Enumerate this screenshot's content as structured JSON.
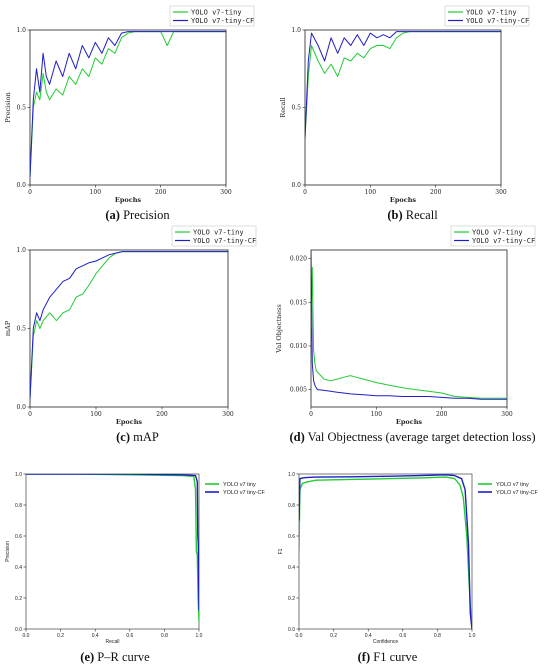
{
  "colors": {
    "tiny": "#22cc33",
    "cf": "#1e1ec8"
  },
  "chart_data": [
    {
      "id": "a",
      "type": "line",
      "caption_letter": "(a)",
      "caption_text": " Precision",
      "xlabel": "Epochs",
      "ylabel": "Precision",
      "xlim": [
        0,
        300
      ],
      "ylim": [
        0,
        1.0
      ],
      "xticks": [
        "0",
        "100",
        "200",
        "300"
      ],
      "xtick_values": [
        0,
        100,
        200,
        300
      ],
      "yticks": [
        "0.0",
        "0.5",
        "1.0"
      ],
      "ytick_values": [
        0,
        0.5,
        1.0
      ],
      "legend": "top-right",
      "series": [
        {
          "name": "YOLO v7-tiny",
          "color_key": "tiny",
          "x": [
            0,
            5,
            10,
            15,
            20,
            25,
            30,
            40,
            50,
            60,
            70,
            80,
            90,
            100,
            110,
            120,
            130,
            140,
            150,
            160,
            170,
            180,
            190,
            200,
            210,
            220,
            240,
            260,
            280,
            300
          ],
          "y": [
            0.05,
            0.5,
            0.6,
            0.55,
            0.72,
            0.6,
            0.55,
            0.62,
            0.58,
            0.7,
            0.65,
            0.75,
            0.7,
            0.82,
            0.78,
            0.88,
            0.85,
            0.95,
            0.98,
            0.99,
            0.99,
            0.99,
            0.99,
            0.99,
            0.9,
            0.99,
            0.99,
            0.99,
            0.99,
            0.99
          ]
        },
        {
          "name": "YOLO v7-tiny-CF",
          "color_key": "cf",
          "x": [
            0,
            5,
            10,
            15,
            20,
            25,
            30,
            40,
            50,
            60,
            70,
            80,
            90,
            100,
            110,
            120,
            130,
            140,
            150,
            160,
            170,
            180,
            190,
            200,
            220,
            240,
            260,
            280,
            300
          ],
          "y": [
            0.05,
            0.55,
            0.75,
            0.6,
            0.85,
            0.7,
            0.65,
            0.8,
            0.7,
            0.85,
            0.75,
            0.9,
            0.82,
            0.92,
            0.85,
            0.95,
            0.9,
            0.98,
            0.99,
            0.99,
            0.99,
            0.99,
            0.99,
            0.99,
            0.99,
            0.99,
            0.99,
            0.99,
            0.99
          ]
        }
      ]
    },
    {
      "id": "b",
      "type": "line",
      "caption_letter": "(b)",
      "caption_text": " Recall",
      "xlabel": "Epochs",
      "ylabel": "Recall",
      "xlim": [
        0,
        300
      ],
      "ylim": [
        0,
        1.0
      ],
      "xticks": [
        "0",
        "100",
        "200",
        "300"
      ],
      "xtick_values": [
        0,
        100,
        200,
        300
      ],
      "yticks": [
        "0.0",
        "0.5",
        "1.0"
      ],
      "ytick_values": [
        0,
        0.5,
        1.0
      ],
      "legend": "top-right",
      "series": [
        {
          "name": "YOLO v7-tiny",
          "color_key": "tiny",
          "x": [
            0,
            5,
            10,
            20,
            30,
            40,
            50,
            60,
            70,
            80,
            90,
            100,
            110,
            120,
            130,
            140,
            150,
            160,
            180,
            200,
            220,
            250,
            300
          ],
          "y": [
            0.3,
            0.7,
            0.9,
            0.8,
            0.72,
            0.78,
            0.7,
            0.82,
            0.8,
            0.85,
            0.82,
            0.88,
            0.9,
            0.9,
            0.88,
            0.95,
            0.98,
            0.99,
            0.99,
            0.99,
            0.99,
            0.99,
            0.99
          ]
        },
        {
          "name": "YOLO v7-tiny-CF",
          "color_key": "cf",
          "x": [
            0,
            5,
            10,
            20,
            30,
            40,
            50,
            60,
            70,
            80,
            90,
            100,
            110,
            120,
            130,
            140,
            150,
            160,
            180,
            200,
            220,
            250,
            300
          ],
          "y": [
            0.3,
            0.8,
            0.98,
            0.9,
            0.8,
            0.95,
            0.85,
            0.95,
            0.9,
            0.97,
            0.9,
            0.98,
            0.95,
            0.97,
            0.95,
            0.99,
            0.99,
            0.99,
            0.99,
            0.99,
            0.99,
            0.99,
            0.99
          ]
        }
      ]
    },
    {
      "id": "c",
      "type": "line",
      "caption_letter": "(c)",
      "caption_text": " mAP",
      "xlabel": "Epochs",
      "ylabel": "mAP",
      "xlim": [
        0,
        300
      ],
      "ylim": [
        0,
        1.0
      ],
      "xticks": [
        "0",
        "100",
        "200",
        "300"
      ],
      "xtick_values": [
        0,
        100,
        200,
        300
      ],
      "yticks": [
        "0.0",
        "0.5",
        "1.0"
      ],
      "ytick_values": [
        0,
        0.5,
        1.0
      ],
      "legend": "top-right",
      "series": [
        {
          "name": "YOLO v7-tiny",
          "color_key": "tiny",
          "x": [
            0,
            5,
            10,
            15,
            20,
            30,
            40,
            50,
            60,
            70,
            80,
            90,
            100,
            110,
            120,
            130,
            140,
            150,
            170,
            200,
            250,
            300
          ],
          "y": [
            0.05,
            0.45,
            0.55,
            0.5,
            0.55,
            0.6,
            0.55,
            0.6,
            0.62,
            0.7,
            0.72,
            0.78,
            0.85,
            0.9,
            0.95,
            0.98,
            0.99,
            0.99,
            0.99,
            0.99,
            0.99,
            0.99
          ]
        },
        {
          "name": "YOLO v7-tiny-CF",
          "color_key": "cf",
          "x": [
            0,
            5,
            10,
            15,
            20,
            30,
            40,
            50,
            60,
            70,
            80,
            90,
            100,
            110,
            120,
            130,
            140,
            150,
            170,
            200,
            250,
            300
          ],
          "y": [
            0.05,
            0.5,
            0.6,
            0.55,
            0.62,
            0.7,
            0.75,
            0.8,
            0.82,
            0.88,
            0.9,
            0.92,
            0.93,
            0.95,
            0.97,
            0.98,
            0.99,
            0.99,
            0.99,
            0.99,
            0.99,
            0.99
          ]
        }
      ]
    },
    {
      "id": "d",
      "type": "line",
      "caption_letter": "(d)",
      "caption_text": " Val Objectness (average target detection loss)",
      "xlabel": "Epochs",
      "ylabel": "Val Objectness",
      "xlim": [
        0,
        300
      ],
      "ylim": [
        0.003,
        0.021
      ],
      "xticks": [
        "0",
        "100",
        "200",
        "300"
      ],
      "xtick_values": [
        0,
        100,
        200,
        300
      ],
      "yticks": [
        "0.005",
        "0.010",
        "0.015",
        "0.020"
      ],
      "ytick_values": [
        0.005,
        0.01,
        0.015,
        0.02
      ],
      "legend": "top-right",
      "series": [
        {
          "name": "YOLO v7-tiny",
          "color_key": "tiny",
          "x": [
            0,
            2,
            4,
            6,
            8,
            10,
            20,
            30,
            40,
            50,
            60,
            70,
            80,
            100,
            120,
            140,
            160,
            180,
            200,
            220,
            240,
            260,
            280,
            300
          ],
          "y": [
            0.012,
            0.019,
            0.0095,
            0.008,
            0.0072,
            0.007,
            0.0062,
            0.006,
            0.0062,
            0.0064,
            0.0066,
            0.0064,
            0.0062,
            0.0058,
            0.0055,
            0.0052,
            0.005,
            0.0048,
            0.0046,
            0.0042,
            0.0041,
            0.004,
            0.004,
            0.004
          ]
        },
        {
          "name": "YOLO v7-tiny-CF",
          "color_key": "cf",
          "x": [
            0,
            2,
            4,
            6,
            8,
            10,
            20,
            30,
            40,
            50,
            60,
            80,
            100,
            120,
            140,
            160,
            180,
            200,
            220,
            240,
            260,
            280,
            300
          ],
          "y": [
            0.021,
            0.008,
            0.006,
            0.0055,
            0.0052,
            0.005,
            0.0049,
            0.0048,
            0.0047,
            0.0046,
            0.0045,
            0.0044,
            0.0043,
            0.0043,
            0.0042,
            0.0042,
            0.0042,
            0.0041,
            0.004,
            0.004,
            0.0039,
            0.0039,
            0.0039
          ]
        }
      ]
    },
    {
      "id": "e",
      "type": "line",
      "caption_letter": "(e)",
      "caption_text": " P–R curve",
      "xlabel": "Recall",
      "ylabel": "Precision",
      "xlim": [
        0,
        1.0
      ],
      "ylim": [
        0,
        1.0
      ],
      "xticks": [
        "0.0",
        "0.2",
        "0.4",
        "0.6",
        "0.8",
        "1.0"
      ],
      "xtick_values": [
        0,
        0.2,
        0.4,
        0.6,
        0.8,
        1.0
      ],
      "yticks": [
        "0.0",
        "0.2",
        "0.4",
        "0.6",
        "0.8",
        "1.0"
      ],
      "ytick_values": [
        0,
        0.2,
        0.4,
        0.6,
        0.8,
        1.0
      ],
      "legend": "top-right",
      "series": [
        {
          "name": "YOLO v7 tiny",
          "color_key": "tiny",
          "x": [
            0,
            0.3,
            0.6,
            0.9,
            0.97,
            0.98,
            0.985,
            0.99,
            0.995,
            1.0
          ],
          "y": [
            1.0,
            1.0,
            0.995,
            0.99,
            0.985,
            0.9,
            0.5,
            0.48,
            0.2,
            0.05
          ]
        },
        {
          "name": "YOLO v7 tiny-CF",
          "color_key": "cf",
          "x": [
            0,
            0.3,
            0.6,
            0.9,
            0.98,
            0.99,
            0.993,
            0.996,
            1.0
          ],
          "y": [
            1.0,
            1.0,
            1.0,
            0.995,
            0.99,
            0.95,
            0.6,
            0.55,
            0.12
          ]
        }
      ]
    },
    {
      "id": "f",
      "type": "line",
      "caption_letter": "(f)",
      "caption_text": " F1 curve",
      "xlabel": "Confidence",
      "ylabel": "F1",
      "xlim": [
        0,
        1.0
      ],
      "ylim": [
        0,
        1.0
      ],
      "xticks": [
        "0.0",
        "0.2",
        "0.4",
        "0.6",
        "0.8",
        "1.0"
      ],
      "xtick_values": [
        0,
        0.2,
        0.4,
        0.6,
        0.8,
        1.0
      ],
      "yticks": [
        "0.0",
        "0.2",
        "0.4",
        "0.6",
        "0.8",
        "1.0"
      ],
      "ytick_values": [
        0,
        0.2,
        0.4,
        0.6,
        0.8,
        1.0
      ],
      "legend": "top-right",
      "series": [
        {
          "name": "YOLO v7 tiny",
          "color_key": "tiny",
          "x": [
            0,
            0.005,
            0.02,
            0.05,
            0.1,
            0.3,
            0.5,
            0.7,
            0.85,
            0.9,
            0.93,
            0.95,
            0.97,
            0.99,
            1.0
          ],
          "y": [
            0.5,
            0.9,
            0.94,
            0.95,
            0.96,
            0.965,
            0.97,
            0.975,
            0.98,
            0.97,
            0.93,
            0.85,
            0.6,
            0.15,
            0.0
          ]
        },
        {
          "name": "YOLO v7 tiny-CF",
          "color_key": "cf",
          "x": [
            0,
            0.005,
            0.02,
            0.05,
            0.1,
            0.3,
            0.5,
            0.7,
            0.85,
            0.9,
            0.94,
            0.96,
            0.98,
            0.99,
            1.0
          ],
          "y": [
            0.7,
            0.97,
            0.975,
            0.978,
            0.98,
            0.982,
            0.985,
            0.99,
            0.995,
            0.99,
            0.97,
            0.9,
            0.55,
            0.1,
            0.0
          ]
        }
      ]
    }
  ]
}
